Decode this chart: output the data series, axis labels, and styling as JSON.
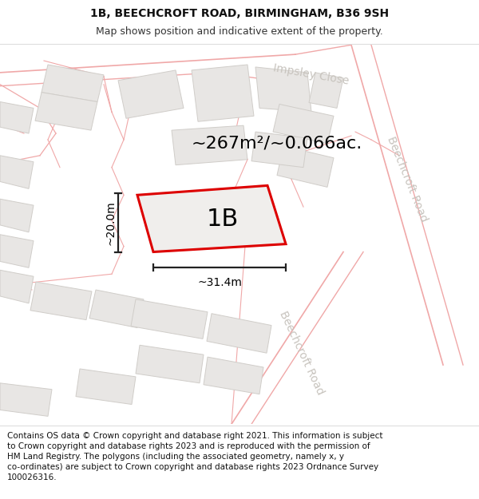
{
  "title_line1": "1B, BEECHCROFT ROAD, BIRMINGHAM, B36 9SH",
  "title_line2": "Map shows position and indicative extent of the property.",
  "area_text": "~267m²/~0.066ac.",
  "label_1b": "1B",
  "dim_width": "~31.4m",
  "dim_height": "~20.0m",
  "road_label_impsley": "Impsley Close",
  "road_label_beech1": "Beechcroft Road",
  "road_label_beech2": "Beechcroft Road",
  "footer_text": "Contains OS data © Crown copyright and database right 2021. This information is subject to Crown copyright and database rights 2023 and is reproduced with the permission of HM Land Registry. The polygons (including the associated geometry, namely x, y co-ordinates) are subject to Crown copyright and database rights 2023 Ordnance Survey 100026316.",
  "map_bg": "#ffffff",
  "building_fill": "#e8e6e4",
  "building_edge": "#d0cdc9",
  "highlight_fill": "#f0eeec",
  "highlight_stroke": "#dd0000",
  "road_line": "#f0a8a8",
  "road_label_color": "#c8c4be",
  "dim_color": "#222222",
  "white": "#ffffff",
  "title_fontsize": 10,
  "subtitle_fontsize": 9,
  "area_fontsize": 16,
  "label_fontsize": 22,
  "dim_fontsize": 10,
  "road_fontsize": 10,
  "footer_fontsize": 7.5
}
